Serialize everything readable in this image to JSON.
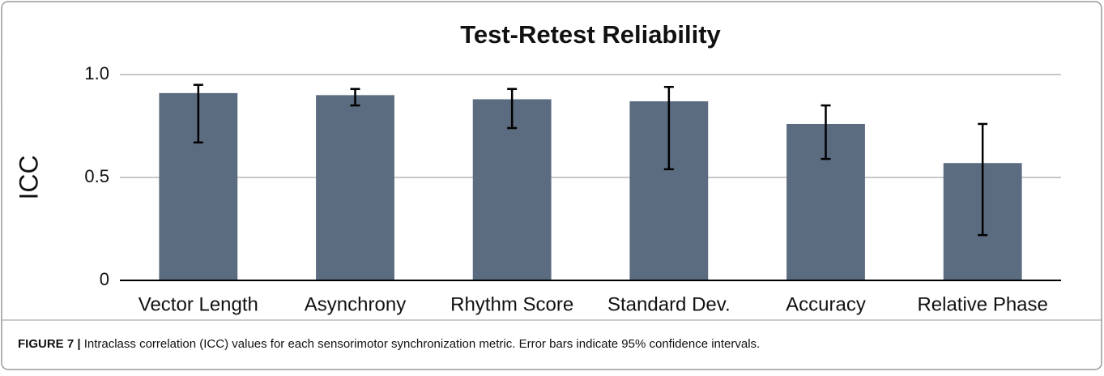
{
  "chart_data": {
    "type": "bar",
    "title": "Test-Retest Reliability",
    "y_label": "ICC",
    "categories": [
      "Vector Length",
      "Asynchrony",
      "Rhythm Score",
      "Standard Dev.",
      "Accuracy",
      "Relative Phase"
    ],
    "series": [
      {
        "color": "#5b6b80",
        "values": [
          0.91,
          0.9,
          0.88,
          0.87,
          0.76,
          0.57
        ],
        "ci_lower": [
          0.67,
          0.85,
          0.74,
          0.54,
          0.59,
          0.22
        ],
        "ci_upper": [
          0.95,
          0.93,
          0.93,
          0.94,
          0.85,
          0.76
        ]
      }
    ],
    "ylim": [
      0,
      1
    ],
    "yticks": [
      0,
      0.5,
      {
        "value": 1,
        "label": "1.0"
      }
    ],
    "grid": true,
    "caption_label": "FIGURE 7 |",
    "caption_text": " Intraclass correlation (ICC) values for each sensorimotor synchronization metric. Error bars indicate 95% confidence intervals."
  }
}
